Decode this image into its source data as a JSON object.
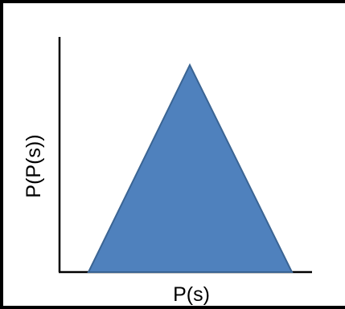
{
  "figure": {
    "x_axis_label": "P(s)",
    "y_axis_label": "P(P(s))",
    "shape": "triangle",
    "colors": {
      "fill": "#4f81bd",
      "stroke": "#3a6493",
      "axes": "#000000",
      "frame": "#000000",
      "background": "#ffffff"
    }
  }
}
